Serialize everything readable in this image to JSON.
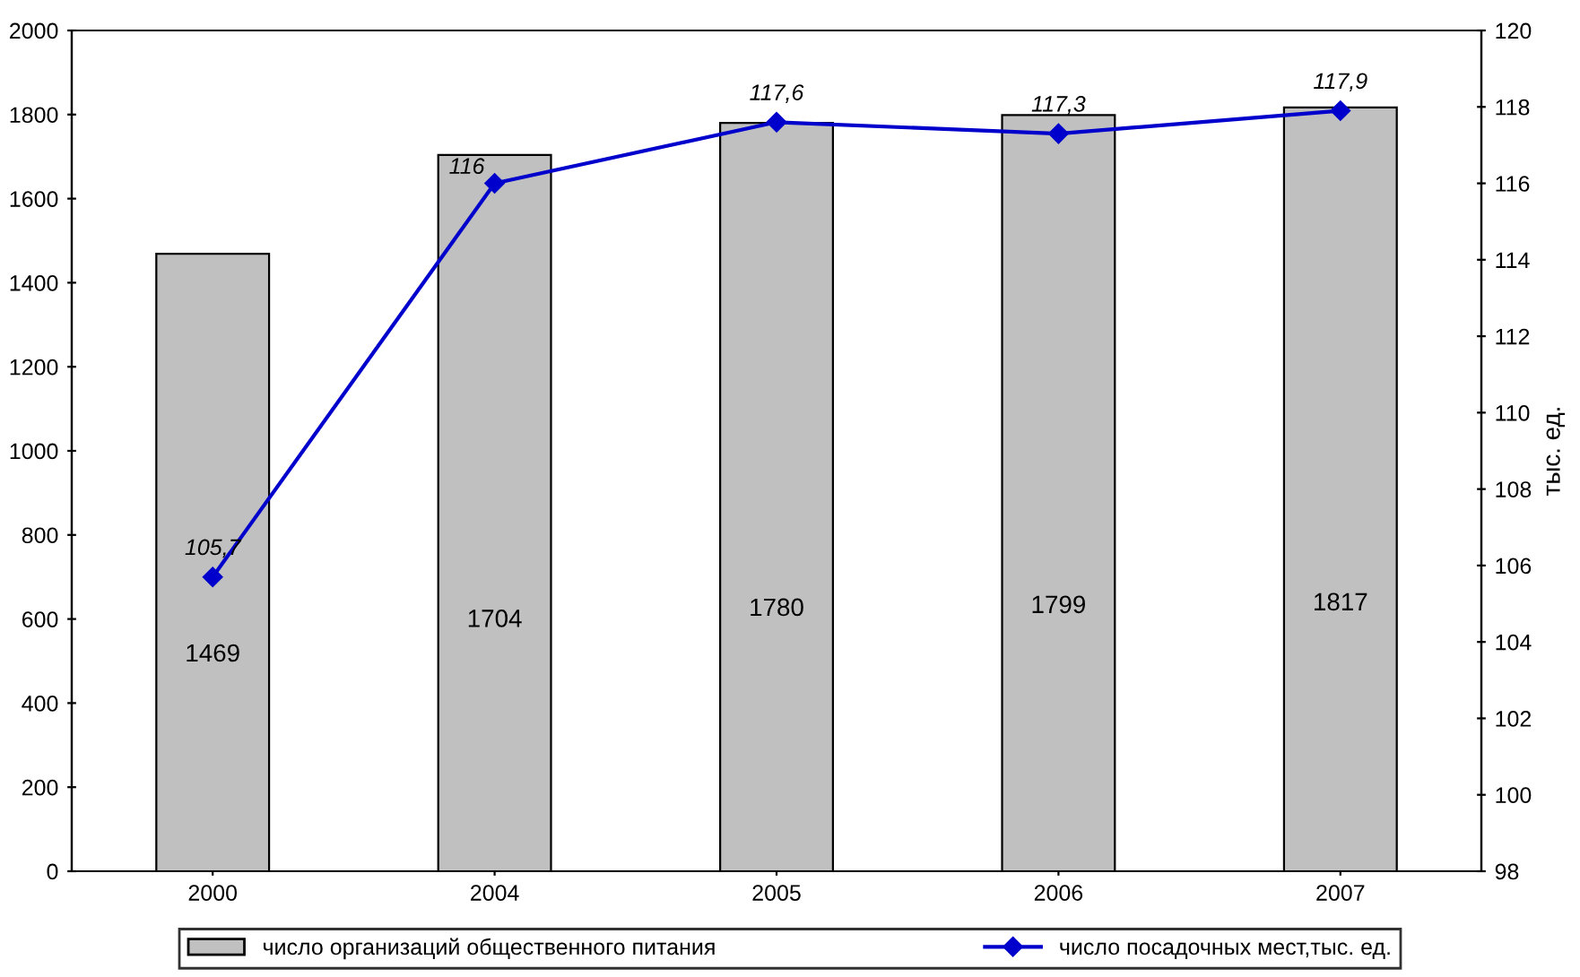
{
  "chart_data": {
    "type": "bar",
    "categories": [
      "2000",
      "2004",
      "2005",
      "2006",
      "2007"
    ],
    "series": [
      {
        "name": "число организаций общественного питания",
        "color": "#c0c0c0",
        "values": [
          1469,
          1704,
          1780,
          1799,
          1817
        ],
        "value_labels": [
          "1469",
          "1704",
          "1780",
          "1799",
          "1817"
        ]
      },
      {
        "name": "число посадочных мест,тыс. ед.",
        "type": "line",
        "axis": "y2",
        "color": "#0000cc",
        "marker": "diamond",
        "values": [
          105.7,
          116,
          117.6,
          117.3,
          117.9
        ],
        "value_labels": [
          "105,7",
          "116",
          "117,6",
          "117,3",
          "117,9"
        ]
      }
    ],
    "ylim": [
      0,
      2000
    ],
    "yticks": [
      0,
      200,
      400,
      600,
      800,
      1000,
      1200,
      1400,
      1600,
      1800,
      2000
    ],
    "y2lim": [
      98,
      120
    ],
    "y2ticks": [
      98,
      100,
      102,
      104,
      106,
      108,
      110,
      112,
      114,
      116,
      118,
      120
    ],
    "y2label": "тыс. ед.",
    "grid": false,
    "legend": "bottom"
  }
}
